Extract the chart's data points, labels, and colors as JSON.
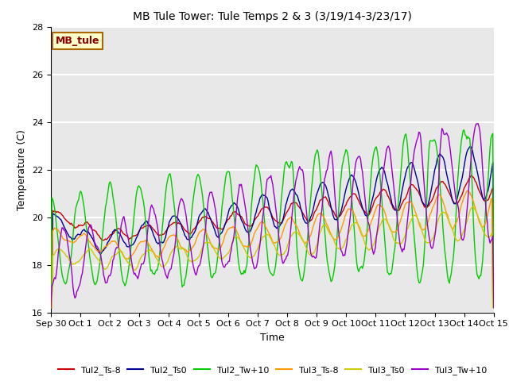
{
  "title": "MB Tule Tower: Tule Temps 2 & 3 (3/19/14-3/23/17)",
  "xlabel": "Time",
  "ylabel": "Temperature (C)",
  "ylim": [
    16,
    28
  ],
  "yticks": [
    16,
    18,
    20,
    22,
    24,
    26,
    28
  ],
  "plot_bg_color": "#e8e8e8",
  "fig_bg_color": "#ffffff",
  "grid_color": "#ffffff",
  "annotation_text": "MB_tule",
  "annotation_bg": "#ffffcc",
  "annotation_border": "#aa6600",
  "annotation_text_color": "#880000",
  "series_names": [
    "Tul2_Ts-8",
    "Tul2_Ts0",
    "Tul2_Tw+10",
    "Tul3_Ts-8",
    "Tul3_Ts0",
    "Tul3_Tw+10"
  ],
  "series_colors": [
    "#cc0000",
    "#000099",
    "#00cc00",
    "#ff9900",
    "#cccc00",
    "#9900cc"
  ],
  "xtick_labels": [
    "Sep 30",
    "Oct 1",
    "Oct 2",
    "Oct 3",
    "Oct 4",
    "Oct 5",
    "Oct 6",
    "Oct 7",
    "Oct 8",
    "Oct 9",
    "Oct 10",
    "Oct 11",
    "Oct 12",
    "Oct 13",
    "Oct 14",
    "Oct 15"
  ],
  "legend_fontsize": 8,
  "title_fontsize": 10,
  "tick_fontsize": 8,
  "lw": 1.0
}
